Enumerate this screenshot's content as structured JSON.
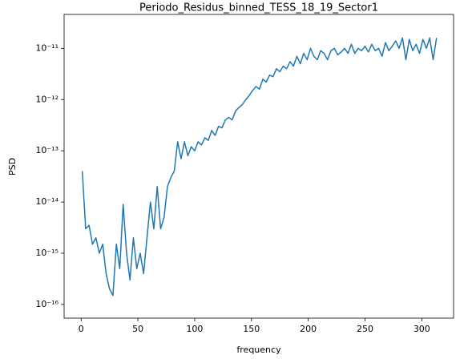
{
  "chart_data": {
    "type": "line",
    "title": "Periodo_Residus_binned_TESS_18_19_Sector1",
    "xlabel": "frequency",
    "ylabel": "PSD",
    "x": [
      1,
      4,
      7,
      10,
      13,
      16,
      19,
      22,
      25,
      28,
      31,
      34,
      37,
      40,
      43,
      46,
      49,
      52,
      55,
      58,
      61,
      64,
      67,
      70,
      73,
      76,
      79,
      82,
      85,
      88,
      91,
      94,
      97,
      100,
      103,
      106,
      109,
      112,
      115,
      118,
      121,
      124,
      127,
      130,
      133,
      136,
      139,
      142,
      145,
      148,
      151,
      154,
      157,
      160,
      163,
      166,
      169,
      172,
      175,
      178,
      181,
      184,
      187,
      190,
      193,
      196,
      199,
      202,
      205,
      208,
      211,
      214,
      217,
      220,
      223,
      226,
      229,
      232,
      235,
      238,
      241,
      244,
      247,
      250,
      253,
      256,
      259,
      262,
      265,
      268,
      271,
      274,
      277,
      280,
      283,
      286,
      289,
      292,
      295,
      298,
      301,
      304,
      307,
      310,
      313
    ],
    "series": [
      {
        "name": "PSD",
        "color": "#1f77b4",
        "values": [
          4e-14,
          3e-15,
          3.5e-15,
          1.5e-15,
          2e-15,
          1e-15,
          1.5e-15,
          4e-16,
          2e-16,
          1.5e-16,
          1.5e-15,
          5e-16,
          9e-15,
          1e-15,
          3e-16,
          2e-15,
          5e-16,
          1e-15,
          4e-16,
          2e-15,
          1e-14,
          3e-15,
          2e-14,
          3e-15,
          5e-15,
          2e-14,
          3e-14,
          4e-14,
          1.5e-13,
          7e-14,
          1.5e-13,
          8e-14,
          1.2e-13,
          1e-13,
          1.5e-13,
          1.3e-13,
          1.8e-13,
          1.6e-13,
          2.5e-13,
          2e-13,
          3e-13,
          2.8e-13,
          4e-13,
          4.5e-13,
          4e-13,
          6e-13,
          7e-13,
          8e-13,
          1e-12,
          1.2e-12,
          1.5e-12,
          1.8e-12,
          1.6e-12,
          2.5e-12,
          2.2e-12,
          3e-12,
          2.8e-12,
          4e-12,
          3.5e-12,
          4.5e-12,
          4e-12,
          5.5e-12,
          4.5e-12,
          7e-12,
          5e-12,
          8e-12,
          6e-12,
          1e-11,
          7e-12,
          6e-12,
          9e-12,
          8e-12,
          6e-12,
          9e-12,
          1e-11,
          7.5e-12,
          8.5e-12,
          1e-11,
          8e-12,
          1.2e-11,
          8e-12,
          1e-11,
          9e-12,
          1.1e-11,
          8.5e-12,
          1.2e-11,
          9e-12,
          1e-11,
          7e-12,
          1.3e-11,
          9e-12,
          1.1e-11,
          1.4e-11,
          1e-11,
          1.6e-11,
          6e-12,
          1.5e-11,
          9e-12,
          1.2e-11,
          8e-12,
          1.5e-11,
          1e-11,
          1.6e-11,
          6e-12,
          1.6e-11
        ]
      }
    ],
    "xlim": [
      -15,
      328
    ],
    "xticks": [
      0,
      50,
      100,
      150,
      200,
      250,
      300
    ],
    "ylim": [
      5.4e-17,
      4.6e-11
    ],
    "ylog": true,
    "yticks": [
      {
        "value": 1e-16,
        "label": "10⁻¹⁶"
      },
      {
        "value": 1e-15,
        "label": "10⁻¹⁵"
      },
      {
        "value": 1e-14,
        "label": "10⁻¹⁴"
      },
      {
        "value": 1e-13,
        "label": "10⁻¹³"
      },
      {
        "value": 1e-12,
        "label": "10⁻¹²"
      },
      {
        "value": 1e-11,
        "label": "10⁻¹¹"
      }
    ],
    "grid": false
  }
}
